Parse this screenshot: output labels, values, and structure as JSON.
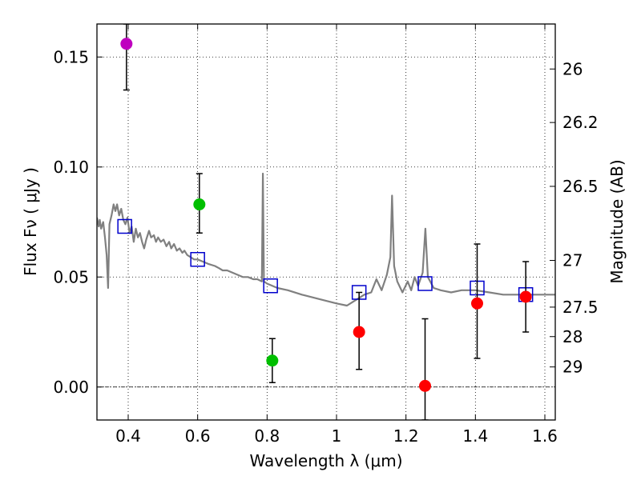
{
  "chart_data": {
    "type": "scatter",
    "title": "",
    "xlabel": "Wavelength  λ (μm)",
    "ylabel": "Flux  Fν  ( μJy )",
    "y2label": "Magnitude (AB)",
    "xlim": [
      0.31,
      1.63
    ],
    "ylim": [
      -0.015,
      0.165
    ],
    "x_ticks": [
      {
        "v": 0.4,
        "label": "0.4"
      },
      {
        "v": 0.6,
        "label": "0.6"
      },
      {
        "v": 0.8,
        "label": "0.8"
      },
      {
        "v": 1.0,
        "label": "1"
      },
      {
        "v": 1.2,
        "label": "1.2"
      },
      {
        "v": 1.4,
        "label": "1.4"
      },
      {
        "v": 1.6,
        "label": "1.6"
      }
    ],
    "y_ticks": [
      {
        "v": 0.0,
        "label": "0.00"
      },
      {
        "v": 0.05,
        "label": "0.05"
      },
      {
        "v": 0.1,
        "label": "0.10"
      },
      {
        "v": 0.15,
        "label": "0.15"
      }
    ],
    "mag_ticks": [
      {
        "mag": 26.0,
        "label": "26"
      },
      {
        "mag": 26.2,
        "label": "26.2"
      },
      {
        "mag": 26.5,
        "label": "26.5"
      },
      {
        "mag": 27.0,
        "label": "27"
      },
      {
        "mag": 27.5,
        "label": "27.5"
      },
      {
        "mag": 28.0,
        "label": "28"
      },
      {
        "mag": 29.0,
        "label": "29"
      }
    ],
    "grid": true,
    "colors": {
      "template": "#808080",
      "model": "#0000cc",
      "purple": "#bf00bf",
      "green": "#00bf00",
      "red": "#ff0000",
      "errorbar": "#000000"
    },
    "observed": [
      {
        "x": 0.395,
        "y": 0.156,
        "yerr_low": 0.135,
        "yerr_high": 0.165,
        "color": "purple"
      },
      {
        "x": 0.605,
        "y": 0.083,
        "yerr_low": 0.07,
        "yerr_high": 0.097,
        "color": "green"
      },
      {
        "x": 0.815,
        "y": 0.012,
        "yerr_low": 0.002,
        "yerr_high": 0.022,
        "color": "green"
      },
      {
        "x": 1.065,
        "y": 0.025,
        "yerr_low": 0.008,
        "yerr_high": 0.043,
        "color": "red"
      },
      {
        "x": 1.255,
        "y": 0.0005,
        "yerr_low": -0.015,
        "yerr_high": 0.031,
        "color": "red"
      },
      {
        "x": 1.405,
        "y": 0.038,
        "yerr_low": 0.013,
        "yerr_high": 0.065,
        "color": "red"
      },
      {
        "x": 1.545,
        "y": 0.041,
        "yerr_low": 0.025,
        "yerr_high": 0.057,
        "color": "red"
      }
    ],
    "model_points": [
      {
        "x": 0.39,
        "y": 0.073
      },
      {
        "x": 0.6,
        "y": 0.058
      },
      {
        "x": 0.81,
        "y": 0.046
      },
      {
        "x": 1.065,
        "y": 0.043
      },
      {
        "x": 1.255,
        "y": 0.047
      },
      {
        "x": 1.405,
        "y": 0.045
      },
      {
        "x": 1.545,
        "y": 0.042
      }
    ],
    "template_spectrum": [
      [
        0.31,
        0.077
      ],
      [
        0.315,
        0.073
      ],
      [
        0.318,
        0.076
      ],
      [
        0.322,
        0.072
      ],
      [
        0.328,
        0.075
      ],
      [
        0.333,
        0.068
      ],
      [
        0.338,
        0.06
      ],
      [
        0.342,
        0.045
      ],
      [
        0.346,
        0.074
      ],
      [
        0.352,
        0.078
      ],
      [
        0.358,
        0.083
      ],
      [
        0.363,
        0.08
      ],
      [
        0.368,
        0.083
      ],
      [
        0.374,
        0.078
      ],
      [
        0.38,
        0.081
      ],
      [
        0.386,
        0.076
      ],
      [
        0.392,
        0.074
      ],
      [
        0.398,
        0.077
      ],
      [
        0.404,
        0.07
      ],
      [
        0.41,
        0.073
      ],
      [
        0.416,
        0.066
      ],
      [
        0.422,
        0.072
      ],
      [
        0.428,
        0.068
      ],
      [
        0.434,
        0.07
      ],
      [
        0.44,
        0.066
      ],
      [
        0.446,
        0.063
      ],
      [
        0.452,
        0.067
      ],
      [
        0.46,
        0.071
      ],
      [
        0.466,
        0.068
      ],
      [
        0.474,
        0.069
      ],
      [
        0.48,
        0.066
      ],
      [
        0.486,
        0.068
      ],
      [
        0.494,
        0.066
      ],
      [
        0.502,
        0.067
      ],
      [
        0.51,
        0.064
      ],
      [
        0.518,
        0.066
      ],
      [
        0.524,
        0.063
      ],
      [
        0.532,
        0.065
      ],
      [
        0.54,
        0.062
      ],
      [
        0.548,
        0.063
      ],
      [
        0.556,
        0.061
      ],
      [
        0.562,
        0.062
      ],
      [
        0.57,
        0.06
      ],
      [
        0.58,
        0.059
      ],
      [
        0.59,
        0.058
      ],
      [
        0.6,
        0.058
      ],
      [
        0.615,
        0.057
      ],
      [
        0.63,
        0.056
      ],
      [
        0.65,
        0.055
      ],
      [
        0.662,
        0.054
      ],
      [
        0.672,
        0.053
      ],
      [
        0.685,
        0.053
      ],
      [
        0.7,
        0.052
      ],
      [
        0.715,
        0.051
      ],
      [
        0.73,
        0.05
      ],
      [
        0.745,
        0.05
      ],
      [
        0.76,
        0.049
      ],
      [
        0.772,
        0.049
      ],
      [
        0.785,
        0.048
      ],
      [
        0.788,
        0.097
      ],
      [
        0.791,
        0.048
      ],
      [
        0.8,
        0.047
      ],
      [
        0.83,
        0.045
      ],
      [
        0.86,
        0.044
      ],
      [
        0.9,
        0.042
      ],
      [
        0.95,
        0.04
      ],
      [
        1.0,
        0.038
      ],
      [
        1.03,
        0.037
      ],
      [
        1.06,
        0.04
      ],
      [
        1.08,
        0.042
      ],
      [
        1.1,
        0.043
      ],
      [
        1.115,
        0.049
      ],
      [
        1.13,
        0.044
      ],
      [
        1.145,
        0.051
      ],
      [
        1.155,
        0.059
      ],
      [
        1.16,
        0.087
      ],
      [
        1.166,
        0.055
      ],
      [
        1.175,
        0.048
      ],
      [
        1.19,
        0.043
      ],
      [
        1.205,
        0.048
      ],
      [
        1.215,
        0.044
      ],
      [
        1.225,
        0.05
      ],
      [
        1.235,
        0.046
      ],
      [
        1.248,
        0.052
      ],
      [
        1.256,
        0.072
      ],
      [
        1.263,
        0.05
      ],
      [
        1.28,
        0.045
      ],
      [
        1.3,
        0.044
      ],
      [
        1.33,
        0.043
      ],
      [
        1.36,
        0.044
      ],
      [
        1.4,
        0.044
      ],
      [
        1.44,
        0.043
      ],
      [
        1.48,
        0.042
      ],
      [
        1.52,
        0.042
      ],
      [
        1.56,
        0.042
      ],
      [
        1.6,
        0.042
      ],
      [
        1.63,
        0.042
      ]
    ]
  }
}
